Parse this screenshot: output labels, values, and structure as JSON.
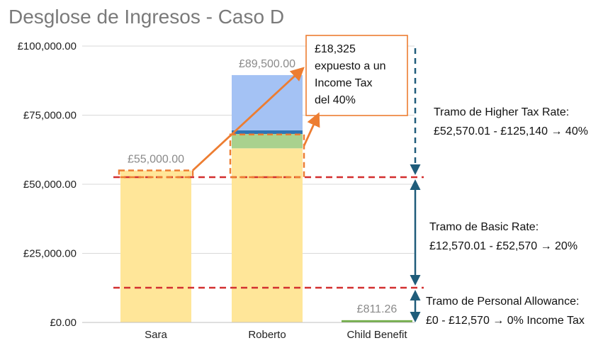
{
  "chart_data": {
    "type": "bar",
    "stacked": true,
    "title": "Desglose de Ingresos - Caso D",
    "categories": [
      "Sara",
      "Roberto",
      "Child Benefit"
    ],
    "ylim": [
      0,
      100000
    ],
    "yticks": [
      0,
      25000,
      50000,
      75000,
      100000
    ],
    "ytick_labels": [
      "£0.00",
      "£25,000.00",
      "£50,000.00",
      "£75,000.00",
      "£100,000.00"
    ],
    "grid": true,
    "series": [
      {
        "color": "#FFE699",
        "values": [
          55000,
          63000,
          0
        ]
      },
      {
        "color": "#A9D18E",
        "values": [
          0,
          5200,
          0
        ]
      },
      {
        "color": "#2E75B6",
        "values": [
          0,
          1300,
          0
        ]
      },
      {
        "color": "#A4C2F4",
        "values": [
          0,
          20000,
          0
        ]
      },
      {
        "color": "#70AD47",
        "values": [
          0,
          0,
          811.26
        ]
      }
    ],
    "totals": [
      {
        "category": "Sara",
        "value": 55000,
        "label": "£55,000.00"
      },
      {
        "category": "Roberto",
        "value": 89500,
        "label": "£89,500.00"
      },
      {
        "category": "Child Benefit",
        "value": 811.26,
        "label": "£811.26"
      }
    ],
    "thresholds": [
      {
        "value": 12570,
        "color": "#D32F2F",
        "style": "dashed"
      },
      {
        "value": 52570,
        "color": "#D32F2F",
        "style": "dashed"
      }
    ],
    "highlight": {
      "color": "#ED7D31",
      "from_value": 52570,
      "sara_to": 55000,
      "roberto_to": 68000
    },
    "callout": {
      "lines": [
        "£18,325",
        "expuesto a un",
        "Income Tax",
        "del 40%"
      ],
      "border_color": "#ED7D31"
    },
    "bands": [
      {
        "from": 0,
        "to": 12570,
        "lines": [
          "Tramo de Personal Allowance:",
          "£0 - £12,570 → 0% Income Tax"
        ]
      },
      {
        "from": 12570,
        "to": 52570,
        "lines": [
          "Tramo de Basic Rate:",
          "£12,570.01 - £52,570 → 20%"
        ]
      },
      {
        "from": 52570,
        "to": 100000,
        "lines": [
          "Tramo de Higher Tax Rate:",
          "£52,570.01 - £125,140 → 40%"
        ]
      }
    ],
    "band_arrow_color": "#1F5C7A"
  }
}
